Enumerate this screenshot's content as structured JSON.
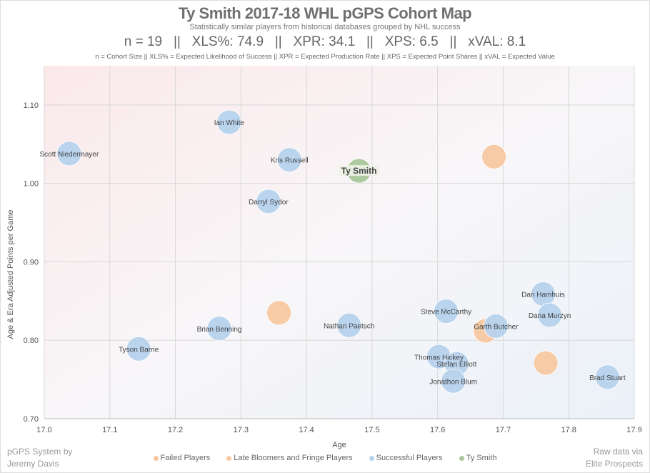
{
  "header": {
    "title": "Ty Smith 2017-18 WHL pGPS Cohort Map",
    "subtitle": "Statistically similar players from historical databases grouped by NHL success",
    "stats": "n = 19   ||   XLS%: 74.9   ||   XPR: 34.1   ||   XPS: 6.5   ||   xVAL: 8.1",
    "definitions": "n = Cohort Size || XLS% = Expected Likelihood of Success || XPR = Expected Production Rate || XPS = Expected Point Shares || xVAL = Expected Value"
  },
  "credits": {
    "left_1": "pGPS System by",
    "left_2": "Jeremy Davis",
    "right_1": "Raw data via",
    "right_2": "Elite Prospects"
  },
  "colors": {
    "failed": "#f5c6a0",
    "late": "#f7c9a2",
    "successful": "#b8d3ee",
    "smith": "#a9c79a"
  },
  "chart_data": {
    "type": "scatter",
    "xlabel": "Age",
    "ylabel": "Age & Era Adjusted Points per Game",
    "xlim": [
      17.0,
      17.9
    ],
    "ylim": [
      0.7,
      1.15
    ],
    "xticks": [
      "17.0",
      "17.1",
      "17.2",
      "17.3",
      "17.4",
      "17.5",
      "17.6",
      "17.7",
      "17.8",
      "17.9"
    ],
    "yticks": [
      "0.70",
      "0.80",
      "0.90",
      "1.00",
      "1.10"
    ],
    "grid": true,
    "legend": [
      {
        "key": "failed",
        "label": "Failed Players"
      },
      {
        "key": "late",
        "label": "Late Bloomers and Fringe Players"
      },
      {
        "key": "successful",
        "label": "Successful Players"
      },
      {
        "key": "smith",
        "label": "Ty Smith"
      }
    ],
    "legend_position": "bottom",
    "points": [
      {
        "name": "Scott Niedermayer",
        "x": 17.038,
        "y": 1.038,
        "group": "successful"
      },
      {
        "name": "Ian White",
        "x": 17.282,
        "y": 1.078,
        "group": "successful"
      },
      {
        "name": "Kris Russell",
        "x": 17.374,
        "y": 1.03,
        "group": "successful"
      },
      {
        "name": "Darryl Sydor",
        "x": 17.342,
        "y": 0.977,
        "group": "successful"
      },
      {
        "name": "",
        "x": 17.686,
        "y": 1.034,
        "group": "late"
      },
      {
        "name": "Dan Hamhuis",
        "x": 17.761,
        "y": 0.859,
        "group": "successful"
      },
      {
        "name": "Dana Murzyn",
        "x": 17.771,
        "y": 0.832,
        "group": "successful"
      },
      {
        "name": "Steve McCarthy",
        "x": 17.613,
        "y": 0.837,
        "group": "successful"
      },
      {
        "name": "",
        "x": 17.673,
        "y": 0.812,
        "group": "late"
      },
      {
        "name": "Garth Butcher",
        "x": 17.689,
        "y": 0.818,
        "group": "successful"
      },
      {
        "name": "Nathan Paetsch",
        "x": 17.465,
        "y": 0.819,
        "group": "successful"
      },
      {
        "name": "Brian Benning",
        "x": 17.267,
        "y": 0.815,
        "group": "successful"
      },
      {
        "name": "",
        "x": 17.358,
        "y": 0.835,
        "group": "late"
      },
      {
        "name": "Tyson Barrie",
        "x": 17.144,
        "y": 0.789,
        "group": "successful"
      },
      {
        "name": "Thomas Hickey",
        "x": 17.602,
        "y": 0.779,
        "group": "successful"
      },
      {
        "name": "Stefan Elliott",
        "x": 17.629,
        "y": 0.77,
        "group": "successful"
      },
      {
        "name": "Jonathon Blum",
        "x": 17.624,
        "y": 0.748,
        "group": "successful"
      },
      {
        "name": "",
        "x": 17.765,
        "y": 0.771,
        "group": "late"
      },
      {
        "name": "Brad Stuart",
        "x": 17.859,
        "y": 0.753,
        "group": "successful"
      },
      {
        "name": "Ty Smith",
        "x": 17.48,
        "y": 1.016,
        "group": "smith"
      }
    ]
  }
}
